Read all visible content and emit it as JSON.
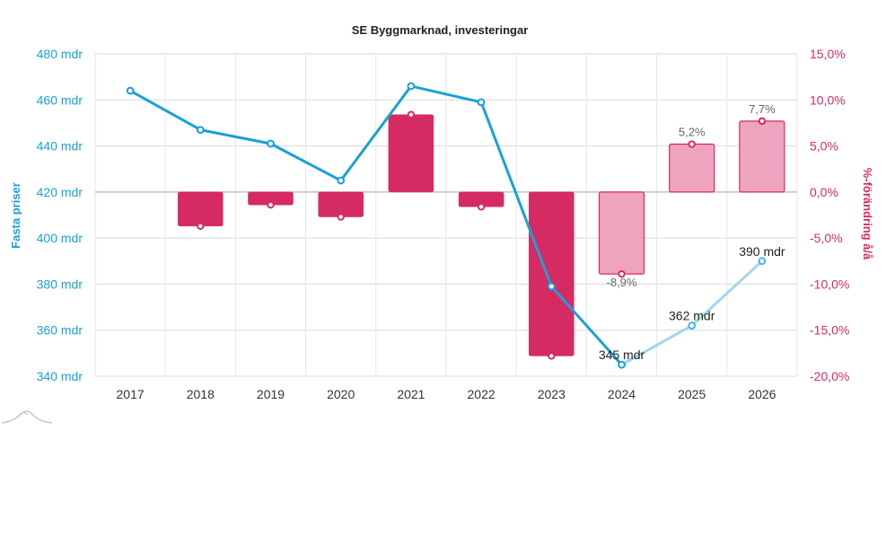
{
  "chart_data": {
    "type": "bar",
    "title": "SE Byggmarknad, investeringar",
    "categories": [
      "2017",
      "2018",
      "2019",
      "2020",
      "2021",
      "2022",
      "2023",
      "2024",
      "2025",
      "2026"
    ],
    "left_axis": {
      "label": "Fasta priser",
      "ylim": [
        340,
        480
      ],
      "ticks": [
        "340 mdr",
        "360 mdr",
        "380 mdr",
        "400 mdr",
        "420 mdr",
        "440 mdr",
        "460 mdr",
        "480 mdr"
      ],
      "tick_values": [
        340,
        360,
        380,
        400,
        420,
        440,
        460,
        480
      ],
      "color": "#1aa0d8"
    },
    "right_axis": {
      "label": "%-förändring å/å",
      "ylim": [
        -20,
        15
      ],
      "ticks": [
        "-20,0%",
        "-15,0%",
        "-10,0%",
        "-5,0%",
        "0,0%",
        "5,0%",
        "10,0%",
        "15,0%"
      ],
      "tick_values": [
        -20,
        -15,
        -10,
        -5,
        0,
        5,
        10,
        15
      ],
      "color": "#d62a63"
    },
    "series": [
      {
        "name": "%-förändring å/å",
        "type": "bar",
        "axis": "right",
        "values": [
          null,
          -3.7,
          -1.4,
          -2.7,
          8.4,
          -1.6,
          -17.8,
          -8.9,
          5.2,
          7.7
        ],
        "forecast_from_index": 7,
        "color": "#d62a63",
        "forecast_color": "#eea3bf"
      },
      {
        "name": "Fasta priser",
        "type": "line",
        "axis": "left",
        "values": [
          464,
          447,
          441,
          425,
          466,
          459,
          379,
          345,
          362,
          390
        ],
        "forecast_from_index": 7,
        "color": "#1aa0d8",
        "forecast_color": "#9fd7ee"
      }
    ],
    "bar_data_labels": [
      {
        "index": 7,
        "text": "-8,9%"
      },
      {
        "index": 8,
        "text": "5,2%"
      },
      {
        "index": 9,
        "text": "7,7%"
      }
    ],
    "line_data_labels": [
      {
        "index": 7,
        "text": "345 mdr"
      },
      {
        "index": 8,
        "text": "362 mdr"
      },
      {
        "index": 9,
        "text": "390 mdr"
      }
    ],
    "grid": true,
    "legend": "none"
  }
}
